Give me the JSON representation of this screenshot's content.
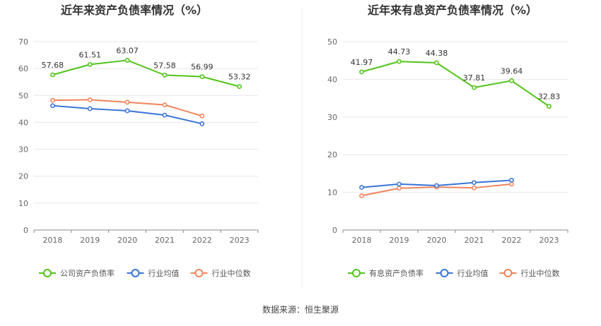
{
  "colors": {
    "company": "#52c41a",
    "industry_avg": "#3a75d6",
    "industry_median": "#f0845c",
    "grid": "#e6e6ef",
    "axis": "#888888"
  },
  "source_text": "数据来源：恒生聚源",
  "chart_data": [
    {
      "type": "line",
      "title": "近年来资产负债率情况（%）",
      "categories": [
        "2018",
        "2019",
        "2020",
        "2021",
        "2022",
        "2023"
      ],
      "ylim": [
        0,
        70
      ],
      "yticks": [
        0,
        10,
        20,
        30,
        40,
        50,
        60,
        70
      ],
      "grid": true,
      "legend_position": "bottom",
      "series": [
        {
          "name": "公司资产负债率",
          "color_key": "company",
          "values": [
            57.68,
            61.51,
            63.07,
            57.58,
            56.99,
            53.32
          ],
          "labels": [
            "57.68",
            "61.51",
            "63.07",
            "57.58",
            "56.99",
            "53.32"
          ]
        },
        {
          "name": "行业均值",
          "color_key": "industry_avg",
          "values": [
            46.2,
            45.1,
            44.3,
            42.7,
            39.5,
            null
          ]
        },
        {
          "name": "行业中位数",
          "color_key": "industry_median",
          "values": [
            48.2,
            48.4,
            47.5,
            46.5,
            42.4,
            null
          ]
        }
      ]
    },
    {
      "type": "line",
      "title": "近年来有息资产负债率情况（%）",
      "categories": [
        "2018",
        "2019",
        "2020",
        "2021",
        "2022",
        "2023"
      ],
      "ylim": [
        0,
        50
      ],
      "yticks": [
        0,
        10,
        20,
        30,
        40,
        50
      ],
      "grid": true,
      "legend_position": "bottom",
      "series": [
        {
          "name": "有息资产负债率",
          "color_key": "company",
          "values": [
            41.97,
            44.73,
            44.38,
            37.81,
            39.64,
            32.83
          ],
          "labels": [
            "41.97",
            "44.73",
            "44.38",
            "37.81",
            "39.64",
            "32.83"
          ]
        },
        {
          "name": "行业均值",
          "color_key": "industry_avg",
          "values": [
            11.3,
            12.2,
            11.8,
            12.6,
            13.2,
            null
          ]
        },
        {
          "name": "行业中位数",
          "color_key": "industry_median",
          "values": [
            9.1,
            11.1,
            11.4,
            11.2,
            12.2,
            null
          ]
        }
      ]
    }
  ]
}
